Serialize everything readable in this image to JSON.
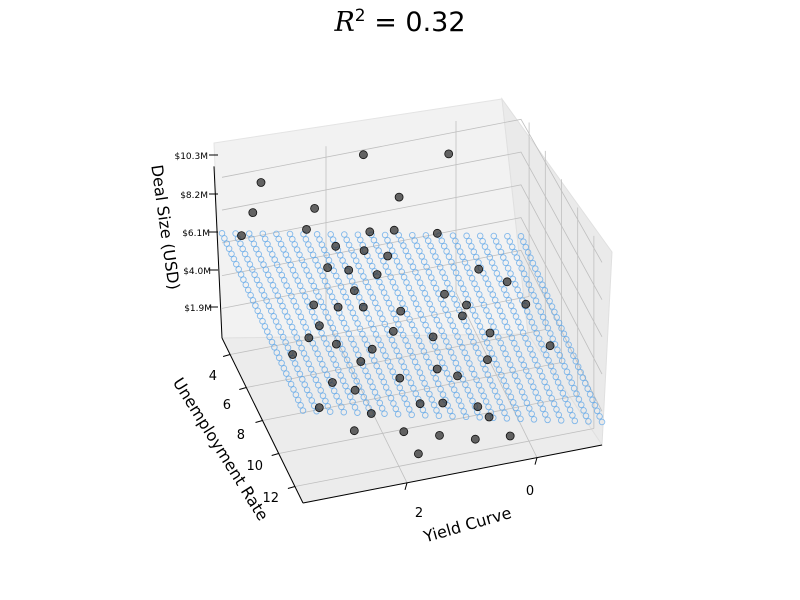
{
  "chart_data": {
    "type": "scatter",
    "projection": "3d",
    "title": {
      "lhs": "R",
      "exponent": "2",
      "rhs": "= 0.32"
    },
    "xlabel": "Yield Curve",
    "ylabel": "Unemployment Rate",
    "zlabel": "Deal Size (USD)",
    "x_ticks": [
      "2",
      "0"
    ],
    "y_ticks": [
      "4",
      "6",
      "8",
      "10",
      "12"
    ],
    "z_ticks": [
      "$1.9M",
      "$4.0M",
      "$6.1M",
      "$8.2M",
      "$10.3M"
    ],
    "xlim": [
      -1.0,
      3.6
    ],
    "ylim": [
      3.0,
      13.0
    ],
    "zlim": [
      0.0,
      11.0
    ],
    "grid": true,
    "colors": {
      "points": "#333333",
      "plane": "#5da5e8",
      "pane": "#f2f2f2",
      "grid": "#bfbfbf"
    },
    "fitted_plane": {
      "equation": "deal_size = 2.9 + 0.85*yield_curve - 0.15*(unemployment_rate - 8)",
      "unit": "$M"
    },
    "points": [
      {
        "x": 3.1,
        "y": 3.8,
        "z": 10.3
      },
      {
        "x": 1.5,
        "y": 3.6,
        "z": 10.6
      },
      {
        "x": 0.2,
        "y": 3.7,
        "z": 9.7
      },
      {
        "x": 3.3,
        "y": 4.4,
        "z": 9.1
      },
      {
        "x": 3.5,
        "y": 4.6,
        "z": 8.0
      },
      {
        "x": 2.3,
        "y": 4.0,
        "z": 8.2
      },
      {
        "x": 2.5,
        "y": 4.6,
        "z": 7.6
      },
      {
        "x": 1.1,
        "y": 4.8,
        "z": 8.7
      },
      {
        "x": 1.6,
        "y": 5.2,
        "z": 7.3
      },
      {
        "x": 0.6,
        "y": 5.5,
        "z": 6.7
      },
      {
        "x": 1.2,
        "y": 5.0,
        "z": 6.9
      },
      {
        "x": 1.7,
        "y": 5.3,
        "z": 6.3
      },
      {
        "x": 2.1,
        "y": 5.0,
        "z": 6.6
      },
      {
        "x": 2.3,
        "y": 5.6,
        "z": 6.0
      },
      {
        "x": 2.0,
        "y": 5.8,
        "z": 5.8
      },
      {
        "x": 1.4,
        "y": 5.8,
        "z": 6.2
      },
      {
        "x": 1.6,
        "y": 6.1,
        "z": 5.5
      },
      {
        "x": 2.0,
        "y": 6.5,
        "z": 5.2
      },
      {
        "x": 2.6,
        "y": 6.3,
        "z": 4.6
      },
      {
        "x": 2.3,
        "y": 6.9,
        "z": 4.8
      },
      {
        "x": 1.9,
        "y": 6.8,
        "z": 4.4
      },
      {
        "x": 2.6,
        "y": 7.0,
        "z": 4.0
      },
      {
        "x": 2.8,
        "y": 7.3,
        "z": 3.7
      },
      {
        "x": 3.1,
        "y": 7.7,
        "z": 3.3
      },
      {
        "x": 2.4,
        "y": 7.5,
        "z": 3.2
      },
      {
        "x": 1.9,
        "y": 7.9,
        "z": 2.9
      },
      {
        "x": 1.3,
        "y": 6.6,
        "z": 3.5
      },
      {
        "x": 0.6,
        "y": 6.4,
        "z": 3.8
      },
      {
        "x": 0.3,
        "y": 6.7,
        "z": 3.2
      },
      {
        "x": -0.4,
        "y": 6.1,
        "z": 3.5
      },
      {
        "x": 0.0,
        "y": 5.8,
        "z": 4.3
      },
      {
        "x": 0.4,
        "y": 7.0,
        "z": 2.9
      },
      {
        "x": 0.9,
        "y": 7.4,
        "z": 2.4
      },
      {
        "x": 1.5,
        "y": 7.3,
        "z": 3.1
      },
      {
        "x": 2.1,
        "y": 8.1,
        "z": 2.5
      },
      {
        "x": 2.6,
        "y": 8.6,
        "z": 2.1
      },
      {
        "x": 1.6,
        "y": 8.9,
        "z": 1.9
      },
      {
        "x": 2.3,
        "y": 9.0,
        "z": 1.8
      },
      {
        "x": 0.8,
        "y": 9.6,
        "z": 2.1
      },
      {
        "x": 0.3,
        "y": 9.3,
        "z": 2.4
      },
      {
        "x": 1.1,
        "y": 10.2,
        "z": 1.3
      },
      {
        "x": 0.6,
        "y": 10.5,
        "z": 1.0
      },
      {
        "x": 1.8,
        "y": 11.0,
        "z": 0.9
      },
      {
        "x": 2.5,
        "y": 10.5,
        "z": 1.0
      },
      {
        "x": 2.2,
        "y": 10.2,
        "z": 1.5
      },
      {
        "x": 1.3,
        "y": 11.4,
        "z": 0.7
      },
      {
        "x": 0.8,
        "y": 11.8,
        "z": 0.5
      },
      {
        "x": 0.3,
        "y": 12.1,
        "z": 0.6
      },
      {
        "x": -0.7,
        "y": 9.0,
        "z": 2.2
      },
      {
        "x": -0.5,
        "y": 7.6,
        "z": 3.5
      },
      {
        "x": 0.1,
        "y": 8.0,
        "z": 2.6
      },
      {
        "x": 1.0,
        "y": 8.7,
        "z": 1.8
      },
      {
        "x": 1.4,
        "y": 9.8,
        "z": 1.1
      },
      {
        "x": 2.9,
        "y": 9.4,
        "z": 1.6
      },
      {
        "x": 0.5,
        "y": 11.1,
        "z": 0.9
      },
      {
        "x": 1.7,
        "y": 12.0,
        "z": 0.5
      }
    ]
  }
}
